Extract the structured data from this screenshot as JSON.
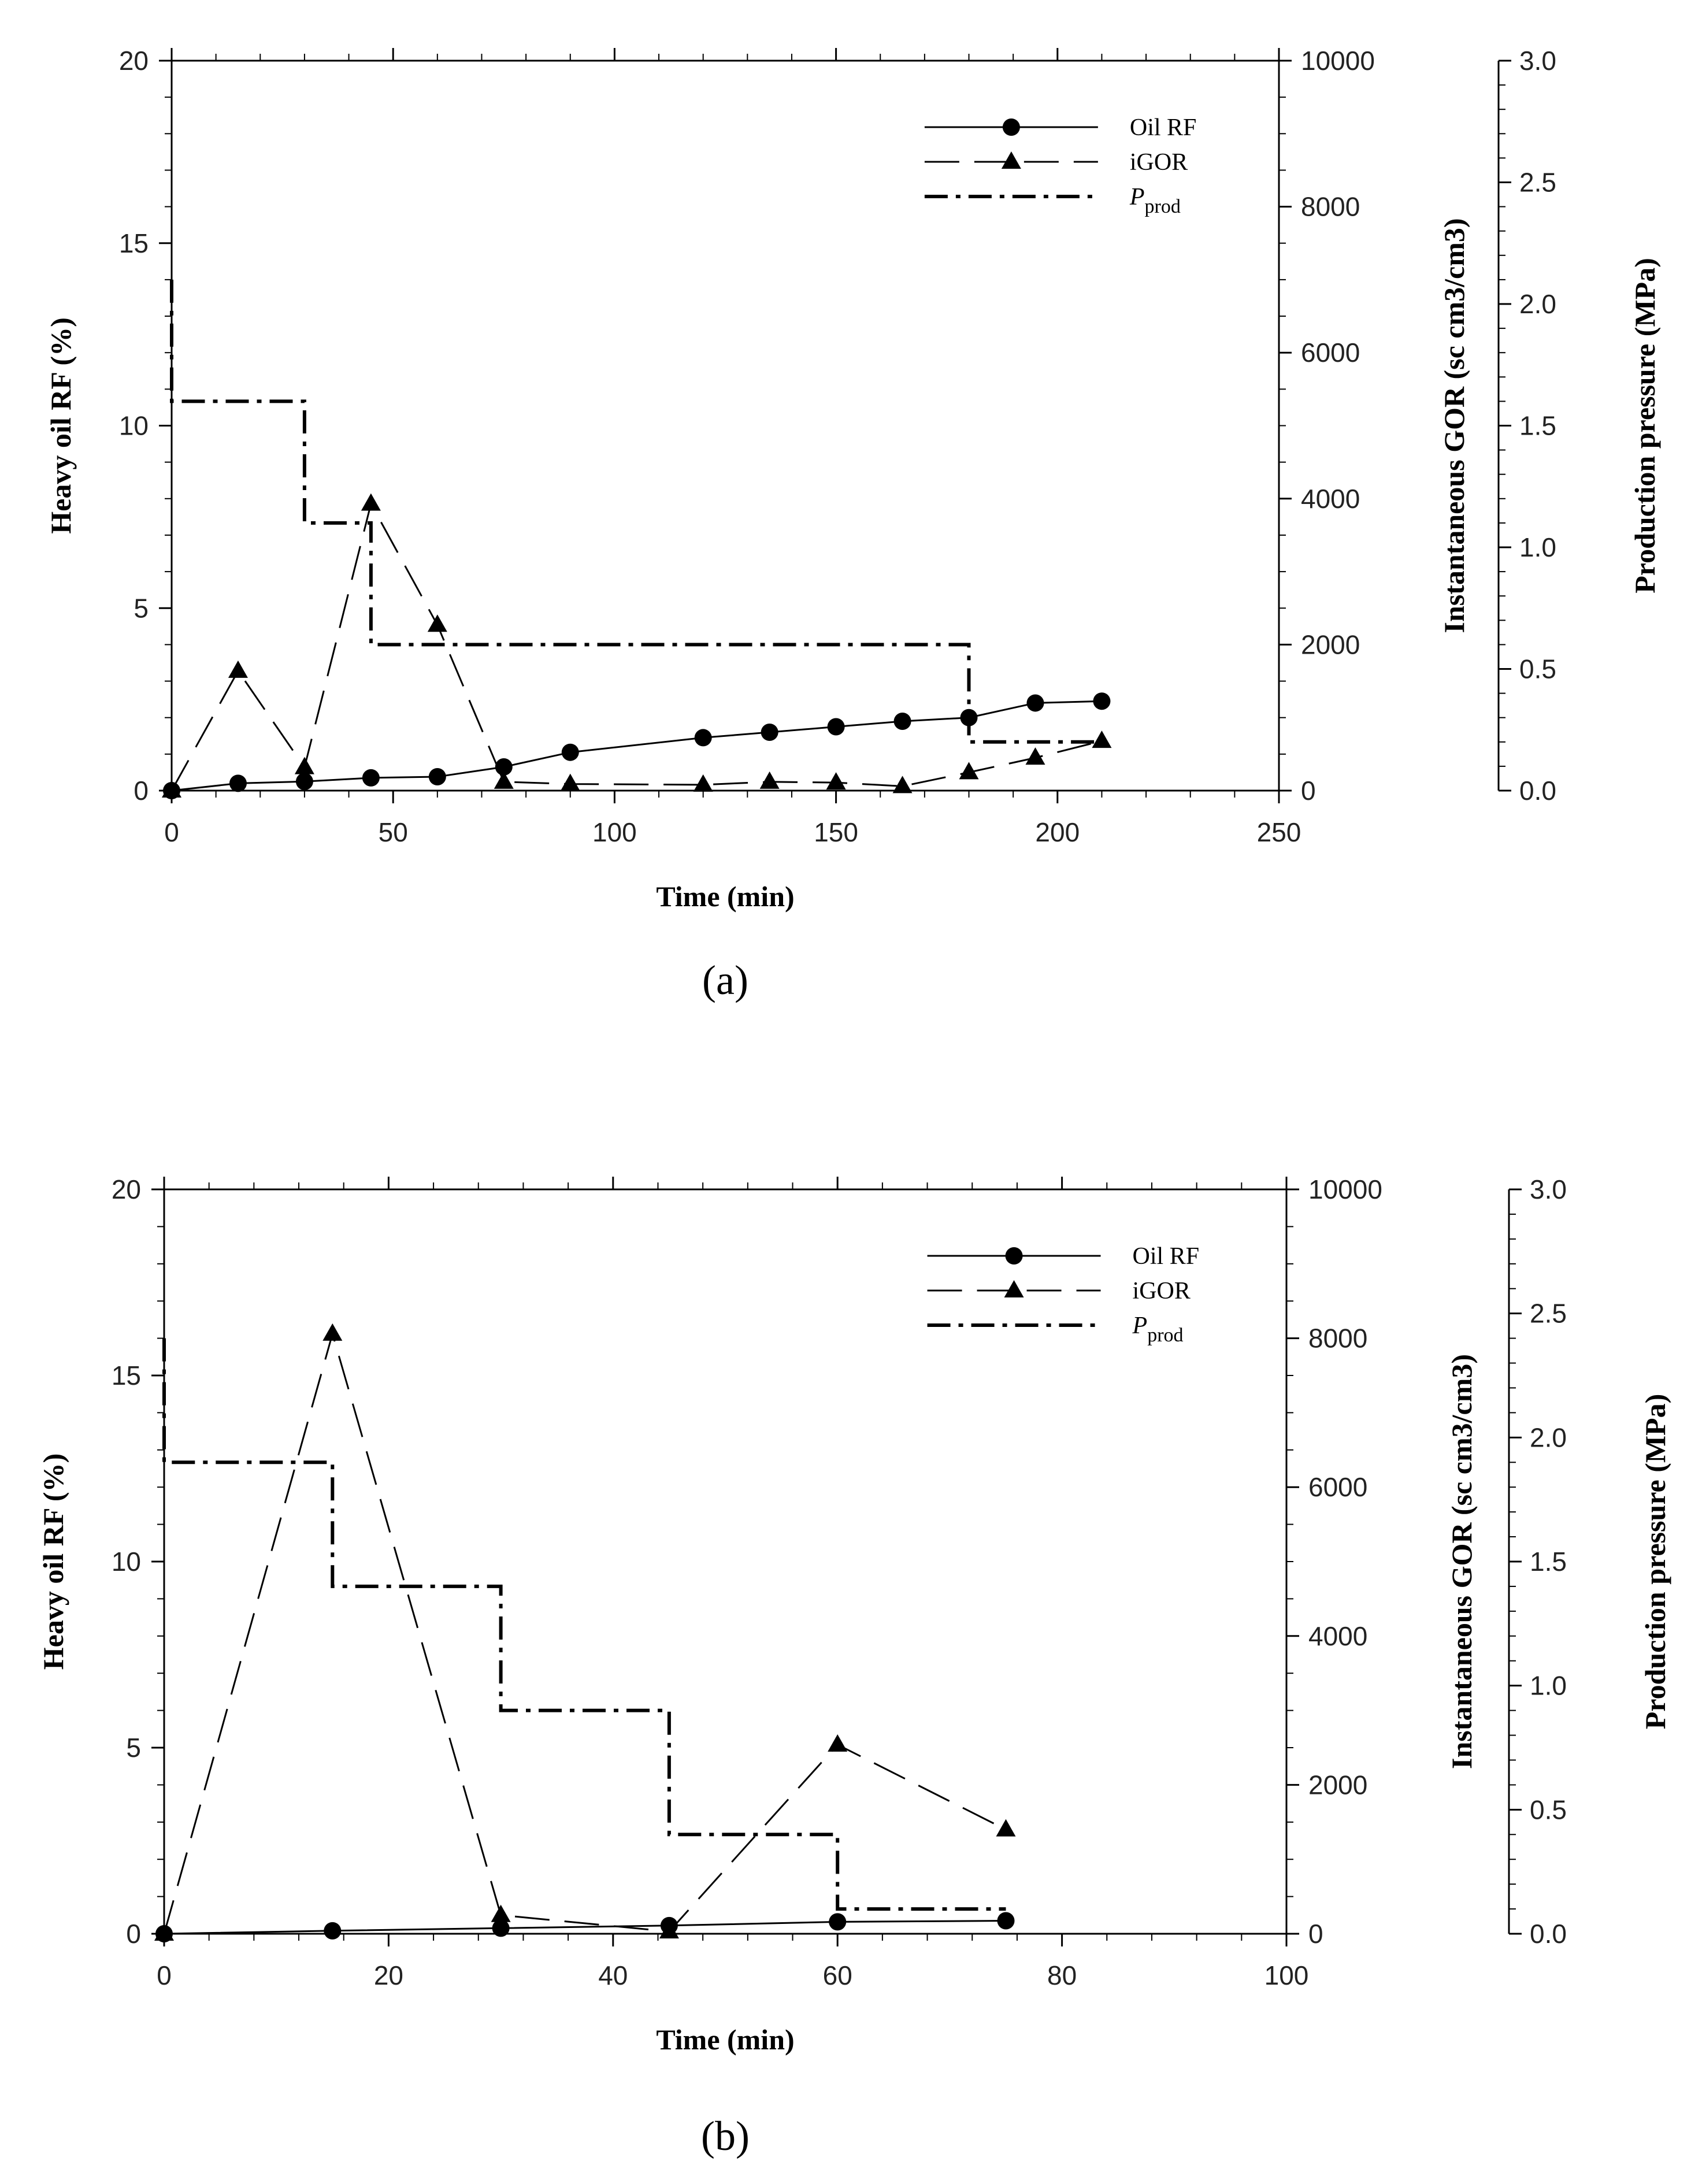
{
  "chart_data": [
    {
      "type": "line",
      "panel_label": "a",
      "xlabel": "Time (min)",
      "ylabel": "Heavy oil RF (%)",
      "y2label": "Instantaneous GOR (sc cm3/cm3)",
      "y3label": "Production pressure (MPa)",
      "xlim": [
        0,
        250
      ],
      "ylim": [
        0,
        20
      ],
      "y2lim": [
        0,
        10000
      ],
      "y3lim": [
        0,
        3.0
      ],
      "x_ticks": [
        "0",
        "50",
        "100",
        "150",
        "200",
        "250"
      ],
      "y_ticks": [
        "0",
        "5",
        "10",
        "15",
        "20"
      ],
      "y2_ticks": [
        "0",
        "2000",
        "4000",
        "6000",
        "8000",
        "10000"
      ],
      "y3_ticks": [
        "0.0",
        "0.5",
        "1.0",
        "1.5",
        "2.0",
        "2.5",
        "3.0"
      ],
      "legend": [
        "Oil RF",
        "iGOR",
        "Pprod"
      ],
      "legend_position": "top-right",
      "series": [
        {
          "name": "Oil RF",
          "axis": "left",
          "style": "solid-circle",
          "x": [
            0,
            15,
            30,
            45,
            60,
            75,
            90,
            120,
            135,
            150,
            165,
            180,
            195,
            210
          ],
          "values": [
            0,
            0.2,
            0.25,
            0.35,
            0.38,
            0.65,
            1.05,
            1.45,
            1.6,
            1.75,
            1.9,
            2.0,
            2.4,
            2.45
          ]
        },
        {
          "name": "iGOR",
          "axis": "right",
          "style": "dash-triangle",
          "x": [
            0,
            15,
            30,
            45,
            60,
            75,
            90,
            120,
            135,
            150,
            165,
            180,
            195,
            210
          ],
          "values": [
            0,
            1640,
            320,
            3930,
            2270,
            120,
            90,
            80,
            120,
            110,
            60,
            250,
            450,
            680
          ]
        },
        {
          "name": "Pprod",
          "axis": "right2",
          "style": "dashdot-step",
          "x": [
            0,
            0,
            30,
            30,
            45,
            45,
            180,
            180,
            210
          ],
          "values": [
            2.1,
            1.6,
            1.6,
            1.1,
            1.1,
            0.6,
            0.6,
            0.2,
            0.2
          ]
        }
      ]
    },
    {
      "type": "line",
      "panel_label": "b",
      "xlabel": "Time (min)",
      "ylabel": "Heavy oil RF (%)",
      "y2label": "Instantaneous GOR (sc cm3/cm3)",
      "y3label": "Production pressure (MPa)",
      "xlim": [
        0,
        100
      ],
      "ylim": [
        0,
        20
      ],
      "y2lim": [
        0,
        10000
      ],
      "y3lim": [
        0,
        3.0
      ],
      "x_ticks": [
        "0",
        "20",
        "40",
        "60",
        "80",
        "100"
      ],
      "y_ticks": [
        "0",
        "5",
        "10",
        "15",
        "20"
      ],
      "y2_ticks": [
        "0",
        "2000",
        "4000",
        "6000",
        "8000",
        "10000"
      ],
      "y3_ticks": [
        "0.0",
        "0.5",
        "1.0",
        "1.5",
        "2.0",
        "2.5",
        "3.0"
      ],
      "legend": [
        "Oil RF",
        "iGOR",
        "Pprod"
      ],
      "legend_position": "top-right",
      "series": [
        {
          "name": "Oil RF",
          "axis": "left",
          "style": "solid-circle",
          "x": [
            0,
            15,
            30,
            45,
            60,
            75
          ],
          "values": [
            0,
            0.08,
            0.15,
            0.22,
            0.32,
            0.35
          ]
        },
        {
          "name": "iGOR",
          "axis": "right",
          "style": "dash-triangle",
          "x": [
            0,
            15,
            30,
            45,
            60,
            75
          ],
          "values": [
            0,
            8060,
            250,
            30,
            2540,
            1400
          ]
        },
        {
          "name": "Pprod",
          "axis": "right2",
          "style": "dashdot-step",
          "x": [
            0,
            0,
            15,
            15,
            30,
            30,
            45,
            45,
            60,
            60,
            75
          ],
          "values": [
            2.4,
            1.9,
            1.9,
            1.4,
            1.4,
            0.9,
            0.9,
            0.4,
            0.4,
            0.1,
            0.1
          ]
        }
      ]
    }
  ]
}
